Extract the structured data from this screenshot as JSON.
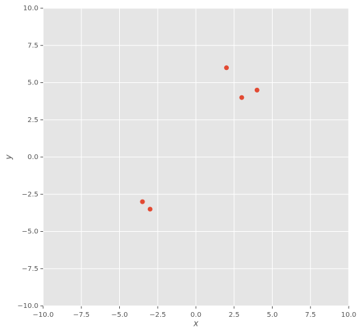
{
  "chart_data": {
    "type": "scatter",
    "x_label": "x",
    "y_label": "y",
    "x": [
      2,
      3,
      4,
      -3.5,
      -3
    ],
    "values": [
      6,
      4,
      4.5,
      -3,
      -3.5
    ],
    "color": "#e24a33",
    "background": "#e5e5e5",
    "grid": true,
    "xlim": [
      -10,
      10
    ],
    "ylim": [
      -10,
      10
    ],
    "xticks": [
      {
        "value": -10,
        "label": "−10.0"
      },
      {
        "value": -7.5,
        "label": "−7.5"
      },
      {
        "value": -5,
        "label": "−5.0"
      },
      {
        "value": -2.5,
        "label": "−2.5"
      },
      {
        "value": 0,
        "label": "0.0"
      },
      {
        "value": 2.5,
        "label": "2.5"
      },
      {
        "value": 5,
        "label": "5.0"
      },
      {
        "value": 7.5,
        "label": "7.5"
      },
      {
        "value": 10,
        "label": "10.0"
      }
    ],
    "yticks": [
      {
        "value": -10,
        "label": "−10.0"
      },
      {
        "value": -7.5,
        "label": "−7.5"
      },
      {
        "value": -5,
        "label": "−5.0"
      },
      {
        "value": -2.5,
        "label": "−2.5"
      },
      {
        "value": 0,
        "label": "0.0"
      },
      {
        "value": 2.5,
        "label": "2.5"
      },
      {
        "value": 5,
        "label": "5.0"
      },
      {
        "value": 7.5,
        "label": "7.5"
      },
      {
        "value": 10,
        "label": "10.0"
      }
    ]
  }
}
